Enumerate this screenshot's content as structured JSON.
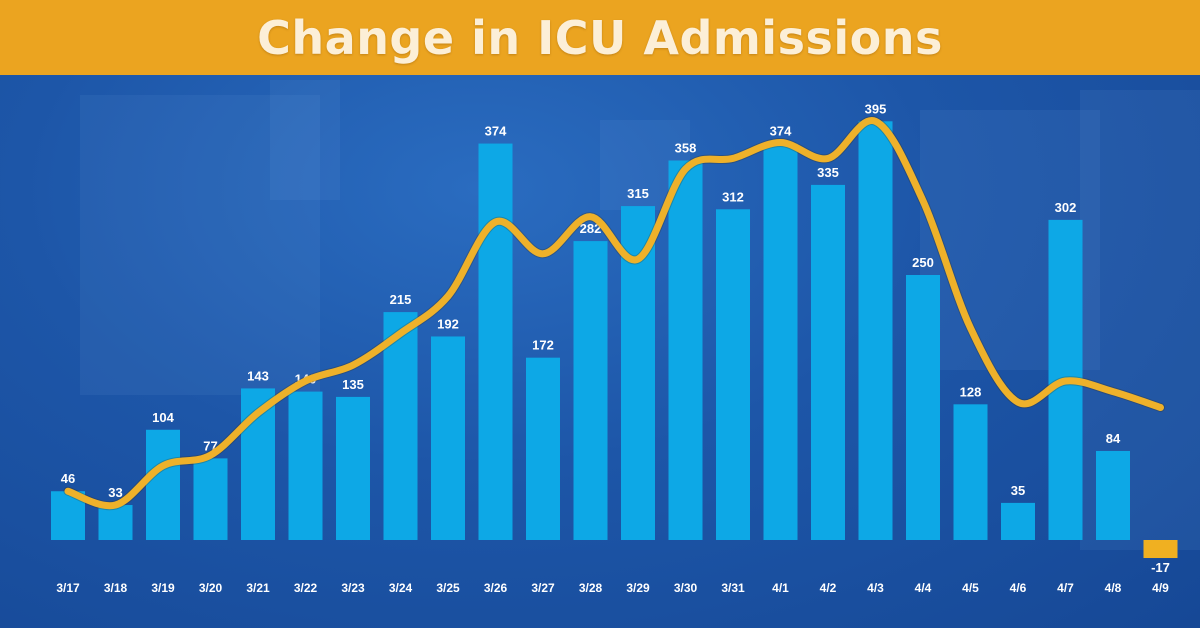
{
  "chart_data": {
    "type": "bar",
    "title": "Change in ICU Admissions",
    "xlabel": "",
    "ylabel": "",
    "categories": [
      "3/17",
      "3/18",
      "3/19",
      "3/20",
      "3/21",
      "3/22",
      "3/23",
      "3/24",
      "3/25",
      "3/26",
      "3/27",
      "3/28",
      "3/29",
      "3/30",
      "3/31",
      "4/1",
      "4/2",
      "4/3",
      "4/4",
      "4/5",
      "4/6",
      "4/7",
      "4/8",
      "4/9"
    ],
    "values": [
      46,
      33,
      104,
      77,
      143,
      140,
      135,
      215,
      192,
      374,
      172,
      282,
      315,
      358,
      312,
      374,
      335,
      395,
      250,
      128,
      35,
      302,
      84,
      -17
    ],
    "trend_line": [
      46,
      33,
      70,
      80,
      120,
      150,
      165,
      195,
      230,
      300,
      270,
      305,
      265,
      350,
      360,
      375,
      360,
      395,
      320,
      200,
      130,
      150,
      140,
      125
    ],
    "ylim": [
      -30,
      410
    ],
    "grid": false,
    "legend": "none",
    "colors": {
      "bar": "#0da8e6",
      "negative_bar": "#f0b021",
      "trend": "#eeb12a",
      "banner": "#eba420",
      "background": "#1d56a8"
    }
  }
}
